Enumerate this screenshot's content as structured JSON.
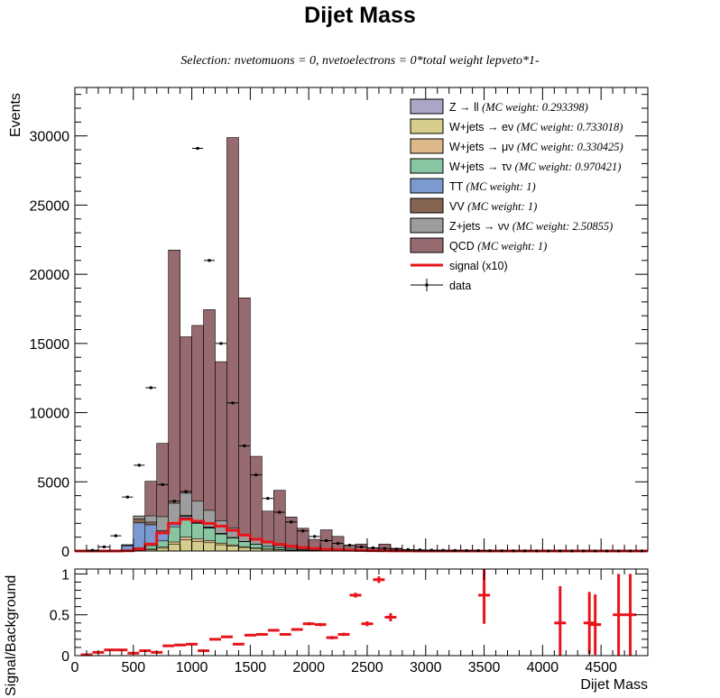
{
  "chart_data": [
    {
      "type": "stacked-histogram",
      "title": "Dijet Mass",
      "subtitle": "Selection: nvetomuons = 0, nvetoelectrons = 0*total weight lepveto*1-",
      "ylabel": "Events",
      "xlim": [
        0,
        4900
      ],
      "ylim": [
        0,
        33500
      ],
      "yticks": [
        0,
        5000,
        10000,
        15000,
        20000,
        25000,
        30000
      ],
      "bin_width": 100,
      "bin_edges_start": 0,
      "legend_position": "top-right",
      "stack": [
        {
          "name": "Z → ll",
          "weight_label": "(MC weight: 0.293398)",
          "color": "#a9a6c6",
          "values": [
            0,
            0,
            0,
            0,
            0,
            0,
            0,
            0,
            0,
            0,
            0,
            0,
            0,
            0,
            0,
            0,
            0,
            0,
            0,
            0,
            0,
            0,
            0,
            0,
            0,
            0,
            0,
            0,
            0,
            0,
            0,
            0,
            0,
            0,
            0,
            0,
            0,
            0,
            0,
            0,
            0,
            0,
            0,
            0,
            0,
            0,
            0,
            0,
            0
          ]
        },
        {
          "name": "W+jets → eν",
          "weight_label": "(MC weight: 0.733018)",
          "color": "#d5cd8b",
          "values": [
            0,
            0,
            0,
            0,
            20,
            60,
            100,
            200,
            500,
            800,
            700,
            600,
            450,
            350,
            250,
            180,
            120,
            80,
            50,
            30,
            20,
            10,
            5,
            0,
            0,
            0,
            0,
            0,
            0,
            0,
            0,
            0,
            0,
            0,
            0,
            0,
            0,
            0,
            0,
            0,
            0,
            0,
            0,
            0,
            0,
            0,
            0,
            0,
            0
          ]
        },
        {
          "name": "W+jets → μν",
          "weight_label": "(MC weight: 0.330425)",
          "color": "#deb888",
          "values": [
            0,
            0,
            0,
            0,
            10,
            20,
            40,
            80,
            150,
            200,
            180,
            150,
            120,
            90,
            60,
            40,
            25,
            15,
            10,
            5,
            0,
            0,
            0,
            0,
            0,
            0,
            0,
            0,
            0,
            0,
            0,
            0,
            0,
            0,
            0,
            0,
            0,
            0,
            0,
            0,
            0,
            0,
            0,
            0,
            0,
            0,
            0,
            0,
            0
          ]
        },
        {
          "name": "W+jets → τν",
          "weight_label": "(MC weight: 0.970421)",
          "color": "#87c6a1",
          "values": [
            0,
            0,
            0,
            0,
            50,
            150,
            250,
            450,
            1100,
            1400,
            1100,
            900,
            650,
            500,
            360,
            260,
            180,
            120,
            80,
            50,
            30,
            20,
            10,
            0,
            0,
            0,
            0,
            0,
            0,
            0,
            0,
            0,
            0,
            0,
            0,
            0,
            0,
            0,
            0,
            0,
            0,
            0,
            0,
            0,
            0,
            0,
            0,
            0,
            0
          ]
        },
        {
          "name": "TT",
          "weight_label": "(MC weight: 1)",
          "color": "#7b9bd0",
          "values": [
            0,
            0,
            0,
            50,
            300,
            1800,
            1500,
            600,
            200,
            100,
            60,
            40,
            20,
            10,
            5,
            0,
            0,
            0,
            0,
            0,
            0,
            0,
            0,
            0,
            0,
            0,
            0,
            0,
            0,
            0,
            0,
            0,
            0,
            0,
            0,
            0,
            0,
            0,
            0,
            0,
            0,
            0,
            0,
            0,
            0,
            0,
            0,
            0,
            0
          ]
        },
        {
          "name": "VV",
          "weight_label": "(MC weight: 1)",
          "color": "#866452",
          "values": [
            0,
            0,
            0,
            0,
            20,
            300,
            200,
            150,
            100,
            80,
            60,
            50,
            40,
            30,
            20,
            10,
            5,
            0,
            0,
            0,
            0,
            0,
            0,
            0,
            0,
            0,
            0,
            0,
            0,
            0,
            0,
            0,
            0,
            0,
            0,
            0,
            0,
            0,
            0,
            0,
            0,
            0,
            0,
            0,
            0,
            0,
            0,
            0,
            0
          ]
        },
        {
          "name": "Z+jets → νν",
          "weight_label": "(MC weight: 2.50855)",
          "color": "#9d9d9d",
          "values": [
            0,
            0,
            0,
            0,
            50,
            200,
            450,
            1000,
            1400,
            1600,
            1500,
            1200,
            900,
            700,
            500,
            350,
            250,
            170,
            120,
            80,
            50,
            30,
            20,
            10,
            5,
            0,
            0,
            0,
            0,
            0,
            0,
            0,
            0,
            0,
            0,
            0,
            0,
            0,
            0,
            0,
            0,
            0,
            0,
            0,
            0,
            0,
            0,
            0,
            0
          ]
        },
        {
          "name": "QCD",
          "weight_label": "(MC weight: 1)",
          "color": "#976a70",
          "values": [
            0,
            0,
            0,
            0,
            0,
            0,
            2500,
            5300,
            18300,
            11300,
            12700,
            14500,
            11500,
            28200,
            17100,
            6000,
            2300,
            4000,
            2200,
            1480,
            740,
            1470,
            1020,
            400,
            500,
            210,
            500,
            200,
            0,
            50,
            0,
            0,
            0,
            0,
            0,
            0,
            0,
            0,
            0,
            0,
            0,
            0,
            0,
            0,
            0,
            0,
            0,
            0,
            0
          ]
        }
      ],
      "signal": {
        "name": "signal (x10)",
        "color": "#e8141b",
        "values": [
          0,
          0,
          0,
          0,
          20,
          150,
          500,
          1300,
          2000,
          2300,
          2150,
          2000,
          1800,
          1500,
          1150,
          850,
          650,
          480,
          350,
          250,
          180,
          130,
          90,
          60,
          40,
          25,
          15,
          8,
          5,
          3,
          2,
          1,
          0,
          0,
          0,
          0,
          0,
          0,
          0,
          0,
          0,
          0,
          0,
          0,
          0,
          0,
          0,
          0,
          0
        ]
      },
      "data": {
        "name": "data",
        "points": [
          [
            150,
            50
          ],
          [
            250,
            300
          ],
          [
            350,
            1100
          ],
          [
            450,
            3900
          ],
          [
            550,
            6200
          ],
          [
            650,
            11800
          ],
          [
            750,
            4800
          ],
          [
            850,
            3600
          ],
          [
            950,
            4300
          ],
          [
            1050,
            29100
          ],
          [
            1150,
            21000
          ],
          [
            1250,
            15000
          ],
          [
            1350,
            10700
          ],
          [
            1450,
            7600
          ],
          [
            1550,
            5500
          ],
          [
            1650,
            3800
          ],
          [
            1750,
            2800
          ],
          [
            1850,
            2100
          ],
          [
            1950,
            1450
          ],
          [
            2050,
            1050
          ],
          [
            2150,
            750
          ],
          [
            2250,
            550
          ],
          [
            2350,
            420
          ],
          [
            2450,
            300
          ],
          [
            2550,
            230
          ],
          [
            2650,
            180
          ],
          [
            2750,
            140
          ],
          [
            2850,
            100
          ],
          [
            2950,
            80
          ],
          [
            3050,
            60
          ],
          [
            3150,
            50
          ],
          [
            3250,
            40
          ],
          [
            3350,
            30
          ],
          [
            3450,
            25
          ],
          [
            3550,
            20
          ],
          [
            3650,
            15
          ],
          [
            3750,
            10
          ],
          [
            3850,
            10
          ],
          [
            3950,
            5
          ],
          [
            4050,
            5
          ],
          [
            4150,
            5
          ],
          [
            4250,
            3
          ],
          [
            4350,
            3
          ],
          [
            4450,
            2
          ],
          [
            4550,
            2
          ],
          [
            4650,
            1
          ],
          [
            4750,
            1
          ],
          [
            4850,
            1
          ]
        ]
      }
    },
    {
      "type": "ratio",
      "ylabel": "Signal/Background",
      "xlabel": "Dijet Mass",
      "xlim": [
        0,
        4900
      ],
      "ylim": [
        0,
        1.06
      ],
      "xticks": [
        0,
        500,
        1000,
        1500,
        2000,
        2500,
        3000,
        3500,
        4000,
        4500
      ],
      "yticks": [
        0,
        0.5,
        1
      ],
      "color": "#e8141b",
      "points": [
        [
          100,
          0.01,
          0.005,
          50
        ],
        [
          200,
          0.04,
          0.01,
          50
        ],
        [
          300,
          0.07,
          0.01,
          50
        ],
        [
          400,
          0.07,
          0.01,
          50
        ],
        [
          500,
          0.03,
          0.01,
          50
        ],
        [
          600,
          0.06,
          0.01,
          50
        ],
        [
          700,
          0.04,
          0.01,
          50
        ],
        [
          800,
          0.12,
          0.01,
          50
        ],
        [
          900,
          0.13,
          0.01,
          50
        ],
        [
          1000,
          0.14,
          0.01,
          50
        ],
        [
          1100,
          0.06,
          0.01,
          50
        ],
        [
          1200,
          0.2,
          0.01,
          50
        ],
        [
          1300,
          0.23,
          0.01,
          50
        ],
        [
          1400,
          0.14,
          0.01,
          50
        ],
        [
          1500,
          0.25,
          0.01,
          50
        ],
        [
          1600,
          0.26,
          0.01,
          50
        ],
        [
          1700,
          0.31,
          0.015,
          50
        ],
        [
          1800,
          0.26,
          0.015,
          50
        ],
        [
          1900,
          0.32,
          0.015,
          50
        ],
        [
          2000,
          0.39,
          0.02,
          50
        ],
        [
          2100,
          0.38,
          0.02,
          50
        ],
        [
          2200,
          0.22,
          0.02,
          50
        ],
        [
          2300,
          0.26,
          0.02,
          50
        ],
        [
          2400,
          0.74,
          0.03,
          50
        ],
        [
          2500,
          0.39,
          0.03,
          50
        ],
        [
          2600,
          0.93,
          0.04,
          50
        ],
        [
          2700,
          0.47,
          0.05,
          50
        ],
        [
          3500,
          0.74,
          0.35,
          50
        ],
        [
          4150,
          0.4,
          0.45,
          50
        ],
        [
          4400,
          0.4,
          0.38,
          50
        ],
        [
          4450,
          0.38,
          0.37,
          50
        ],
        [
          4650,
          0.5,
          0.5,
          50
        ],
        [
          4750,
          0.5,
          0.5,
          50
        ]
      ]
    }
  ]
}
